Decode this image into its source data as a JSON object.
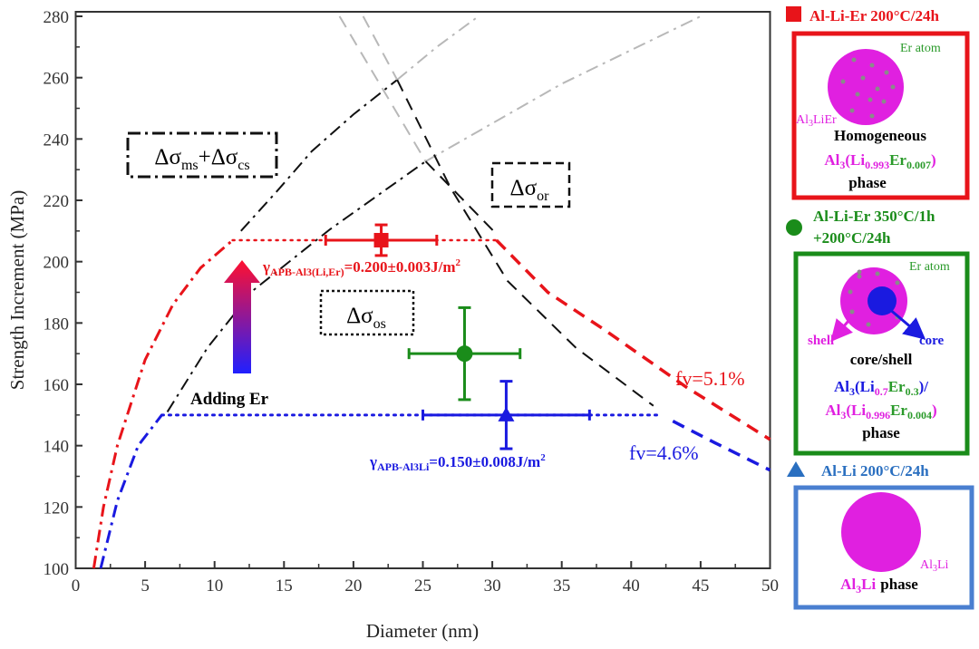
{
  "chart_data": {
    "type": "scatter",
    "title": "",
    "xlabel": "Diameter (nm)",
    "ylabel": "Strength Increment (MPa)",
    "xlim": [
      0,
      50
    ],
    "ylim": [
      100,
      280
    ],
    "xticks": [
      "0",
      "5",
      "10",
      "15",
      "20",
      "25",
      "30",
      "35",
      "40",
      "45",
      "50"
    ],
    "yticks": [
      "100",
      "120",
      "140",
      "160",
      "180",
      "200",
      "220",
      "240",
      "260",
      "280"
    ],
    "grid": false,
    "points": [
      {
        "name": "Al-Li-Er 200°C/24h",
        "marker": "square",
        "color": "#e8141a",
        "x": 22,
        "y": 207,
        "xerr": [
          18,
          26
        ],
        "yerr": [
          202,
          212
        ]
      },
      {
        "name": "Al-Li-Er 350°C/1h +200°C/24h",
        "marker": "circle",
        "color": "#1a8c1a",
        "x": 28,
        "y": 170,
        "xerr": [
          24,
          32
        ],
        "yerr": [
          155,
          185
        ]
      },
      {
        "name": "Al-Li 200°C/24h",
        "marker": "triangle",
        "color": "#1a1ae0",
        "x": 31,
        "y": 150,
        "xerr": [
          25,
          37
        ],
        "yerr": [
          139,
          161
        ]
      }
    ],
    "curves": [
      {
        "name": "red-shearing",
        "color": "#e8141a",
        "style": "dashdot",
        "width": 3,
        "points": [
          [
            1.3,
            100
          ],
          [
            2,
            120
          ],
          [
            3,
            140
          ],
          [
            5,
            168
          ],
          [
            7,
            186
          ],
          [
            9,
            198
          ],
          [
            11.3,
            207
          ]
        ]
      },
      {
        "name": "red-plateau",
        "color": "#e8141a",
        "style": "dot",
        "width": 2.5,
        "points": [
          [
            11.3,
            207
          ],
          [
            30.3,
            207
          ]
        ]
      },
      {
        "name": "red-orowan",
        "color": "#e8141a",
        "style": "dash",
        "width": 3.5,
        "points": [
          [
            30.3,
            207
          ],
          [
            34,
            190
          ],
          [
            38,
            178
          ],
          [
            44,
            159
          ],
          [
            50,
            142
          ]
        ]
      },
      {
        "name": "blue-shearing",
        "color": "#1a1ae0",
        "style": "dashdot",
        "width": 3,
        "points": [
          [
            1.8,
            100
          ],
          [
            3,
            122
          ],
          [
            4.5,
            140
          ],
          [
            6.2,
            150
          ]
        ]
      },
      {
        "name": "blue-plateau",
        "color": "#1a1ae0",
        "style": "dot",
        "width": 3,
        "points": [
          [
            6.2,
            150
          ],
          [
            42,
            150
          ]
        ]
      },
      {
        "name": "blue-orowan",
        "color": "#1a1ae0",
        "style": "dash",
        "width": 3.5,
        "points": [
          [
            43,
            148
          ],
          [
            46,
            141
          ],
          [
            50,
            132
          ]
        ]
      },
      {
        "name": "black-shearing-upper",
        "color": "#111111",
        "style": "dashdot",
        "width": 2,
        "points": [
          [
            11.9,
            210
          ],
          [
            14.5,
            223
          ],
          [
            17,
            236
          ],
          [
            20,
            248
          ],
          [
            23.15,
            259.3
          ]
        ]
      },
      {
        "name": "gray-shearing-upper",
        "color": "#b8b8b8",
        "style": "dashdot",
        "width": 2,
        "points": [
          [
            23.15,
            259.3
          ],
          [
            26,
            270
          ],
          [
            29,
            280
          ]
        ]
      },
      {
        "name": "black-shearing-lower",
        "color": "#111111",
        "style": "dashdot",
        "width": 2,
        "points": [
          [
            6.6,
            151
          ],
          [
            9.5,
            172
          ],
          [
            12.8,
            190.7
          ],
          [
            18.3,
            210.5
          ],
          [
            25.2,
            232.7
          ]
        ]
      },
      {
        "name": "gray-shearing-lower",
        "color": "#b8b8b8",
        "style": "dashdot",
        "width": 2,
        "points": [
          [
            25.2,
            232.7
          ],
          [
            35,
            258
          ],
          [
            45,
            280
          ]
        ]
      },
      {
        "name": "gray-orowan-a",
        "color": "#b8b8b8",
        "style": "dash",
        "width": 2,
        "points": [
          [
            19,
            280
          ],
          [
            25.2,
            232.7
          ]
        ]
      },
      {
        "name": "black-orowan-a",
        "color": "#111111",
        "style": "dash",
        "width": 2,
        "points": [
          [
            25.2,
            232.7
          ],
          [
            30.3,
            209
          ]
        ]
      },
      {
        "name": "gray-orowan-b",
        "color": "#b8b8b8",
        "style": "dash",
        "width": 2,
        "points": [
          [
            20.7,
            280
          ],
          [
            23.15,
            259.3
          ]
        ]
      },
      {
        "name": "black-orowan-b",
        "color": "#111111",
        "style": "dash",
        "width": 2,
        "points": [
          [
            23.15,
            259.3
          ],
          [
            27,
            224
          ],
          [
            31.1,
            193.7
          ],
          [
            36,
            172
          ],
          [
            41.6,
            153
          ]
        ]
      }
    ],
    "annotations": {
      "ms_cs": {
        "d1": "Δσ",
        "s1": "ms",
        "plus": "+",
        "d2": "Δσ",
        "s2": "cs"
      },
      "or": {
        "d": "Δσ",
        "s": "or"
      },
      "os": {
        "d": "Δσ",
        "s": "os"
      },
      "gamma_red": {
        "g": "γ",
        "sub": "APB-Al3(Li,Er)",
        "val": "=0.200±0.003J/m",
        "sup": "2"
      },
      "gamma_blue": {
        "g": "γ",
        "sub": "APB-Al3Li",
        "val": "=0.150±0.008J/m",
        "sup": "2"
      },
      "adding_er": "Adding Er",
      "fv_red": "fv=5.1%",
      "fv_blue": "fv=4.6%"
    }
  },
  "legend": {
    "red": {
      "label": "Al-Li-Er 200°C/24h",
      "er_atom": "Er atom",
      "phase_name": "Al",
      "phase_sub": "3",
      "phase_rest": "LiEr",
      "desc": "Homogeneous",
      "f": [
        "Al",
        "3",
        "(Li",
        "0.993",
        "Er",
        "0.007",
        ")"
      ],
      "phase": "phase"
    },
    "green": {
      "label1": "Al-Li-Er 350°C/1h",
      "label2": "+200°C/24h",
      "er_atom": "Er atom",
      "shell": "shell",
      "core": "core",
      "desc": "core/shell",
      "f1": [
        "Al",
        "3",
        "(Li",
        "0.7",
        "Er",
        "0.3",
        ")/"
      ],
      "f2": [
        "Al",
        "3",
        "(Li",
        "0.996",
        "Er",
        "0.004",
        ")"
      ],
      "phase": "phase"
    },
    "blue": {
      "label": "Al-Li 200°C/24h",
      "p1": "Al",
      "p1s": "3",
      "p1r": "Li",
      "f": [
        "Al",
        "3",
        "Li"
      ],
      "phase": "phase"
    }
  },
  "colors": {
    "red": "#e8141a",
    "green": "#1a8c1a",
    "blue": "#1a1ae0",
    "magenta": "#e020e0",
    "legend_blue": "#2a6fc0"
  }
}
